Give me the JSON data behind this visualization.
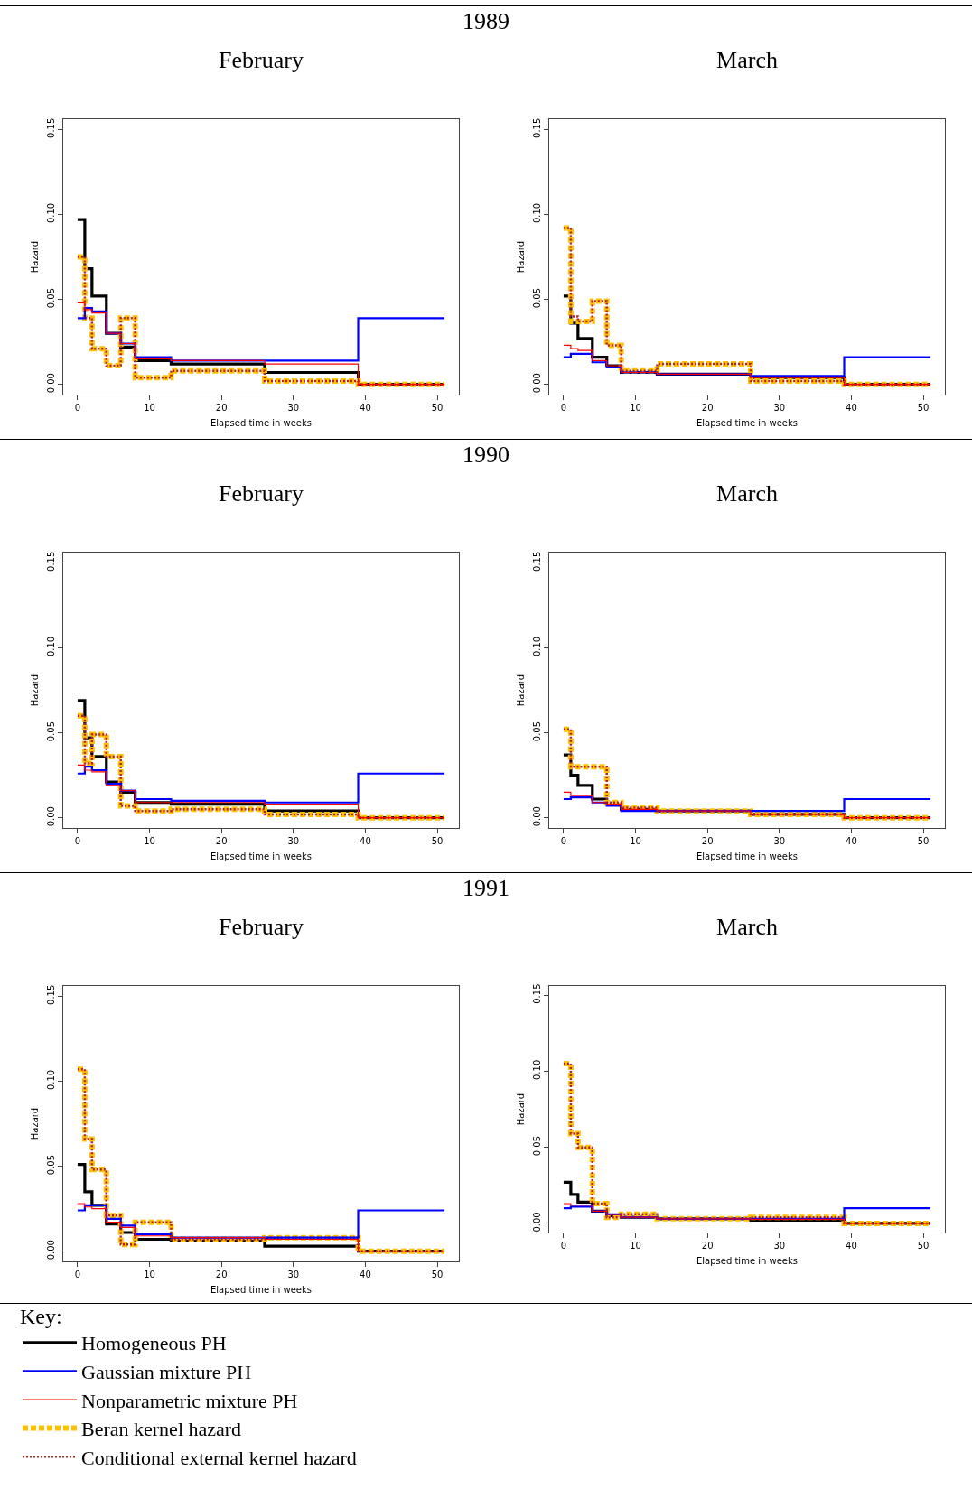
{
  "chart_data": [
    {
      "type": "step",
      "title": "February",
      "annotations": [
        "1989"
      ],
      "xlabel": "Elapsed time in weeks",
      "ylabel": "Hazard",
      "x": [
        0,
        1,
        2,
        4,
        6,
        8,
        13,
        26,
        39,
        51
      ],
      "xlim": [
        -2,
        53
      ],
      "xticks": [
        0,
        10,
        20,
        30,
        40,
        50
      ],
      "ylim": [
        -0.006,
        0.156
      ],
      "yticks": [
        {
          "value": 0,
          "label": "0.00"
        },
        {
          "value": 0.05,
          "label": "0.05"
        },
        {
          "value": 0.1,
          "label": "0.10"
        },
        {
          "value": 0.15,
          "label": "0.15"
        }
      ],
      "series": [
        {
          "color": "#000000",
          "line_style": "solid",
          "values": [
            0.097,
            0.068,
            0.052,
            0.03,
            0.022,
            0.014,
            0.012,
            0.007,
            0,
            0
          ]
        },
        {
          "color": "#0000ff",
          "line_style": "solid",
          "values": [
            0.039,
            0.045,
            0.043,
            0.03,
            0.024,
            0.016,
            0.014,
            0.014,
            0.039,
            0.039
          ]
        },
        {
          "color": "#ff0000",
          "line_style": "solid",
          "values": [
            0.048,
            0.044,
            0.042,
            0.03,
            0.024,
            0.015,
            0.014,
            0.012,
            0,
            0
          ]
        },
        {
          "color": "#ffc000",
          "line_style": "dotted",
          "values": [
            0.075,
            0.039,
            0.021,
            0.011,
            0.039,
            0.004,
            0.008,
            0.002,
            0,
            0
          ]
        },
        {
          "color": "#b22222",
          "line_style": "dotted",
          "values": [
            0.075,
            0.039,
            0.021,
            0.011,
            0.039,
            0.004,
            0.008,
            0.002,
            0,
            0
          ]
        }
      ]
    },
    {
      "type": "step",
      "title": "March",
      "xlabel": "Elapsed time in weeks",
      "ylabel": "Hazard",
      "x": [
        0,
        1,
        2,
        4,
        6,
        8,
        13,
        26,
        39,
        51
      ],
      "xlim": [
        -2,
        53
      ],
      "xticks": [
        0,
        10,
        20,
        30,
        40,
        50
      ],
      "ylim": [
        -0.006,
        0.156
      ],
      "yticks": [
        {
          "value": 0,
          "label": "0.00"
        },
        {
          "value": 0.05,
          "label": "0.05"
        },
        {
          "value": 0.1,
          "label": "0.10"
        },
        {
          "value": 0.15,
          "label": "0.15"
        }
      ],
      "series": [
        {
          "color": "#000000",
          "line_style": "solid",
          "values": [
            0.052,
            0.036,
            0.027,
            0.016,
            0.011,
            0.007,
            0.006,
            0.004,
            0,
            0
          ]
        },
        {
          "color": "#0000ff",
          "line_style": "solid",
          "values": [
            0.016,
            0.018,
            0.018,
            0.013,
            0.01,
            0.007,
            0.006,
            0.005,
            0.016,
            0.016
          ]
        },
        {
          "color": "#ff0000",
          "line_style": "solid",
          "values": [
            0.023,
            0.021,
            0.02,
            0.014,
            0.011,
            0.007,
            0.006,
            0.004,
            0,
            0
          ]
        },
        {
          "color": "#ffc000",
          "line_style": "dotted",
          "values": [
            0.092,
            0.037,
            0.037,
            0.049,
            0.023,
            0.008,
            0.012,
            0.002,
            0,
            0
          ]
        },
        {
          "color": "#b22222",
          "line_style": "dotted",
          "values": [
            0.092,
            0.04,
            0.037,
            0.049,
            0.023,
            0.008,
            0.012,
            0.002,
            0,
            0
          ]
        }
      ]
    },
    {
      "type": "step",
      "title": "February",
      "annotations": [
        "1990"
      ],
      "xlabel": "Elapsed time in weeks",
      "ylabel": "Hazard",
      "x": [
        0,
        1,
        2,
        4,
        6,
        8,
        13,
        26,
        39,
        51
      ],
      "xlim": [
        -2,
        53
      ],
      "xticks": [
        0,
        10,
        20,
        30,
        40,
        50
      ],
      "ylim": [
        -0.006,
        0.156
      ],
      "yticks": [
        {
          "value": 0,
          "label": "0.00"
        },
        {
          "value": 0.05,
          "label": "0.05"
        },
        {
          "value": 0.1,
          "label": "0.10"
        },
        {
          "value": 0.15,
          "label": "0.15"
        }
      ],
      "series": [
        {
          "color": "#000000",
          "line_style": "solid",
          "values": [
            0.069,
            0.047,
            0.036,
            0.021,
            0.015,
            0.009,
            0.008,
            0.004,
            0,
            0
          ]
        },
        {
          "color": "#0000ff",
          "line_style": "solid",
          "values": [
            0.026,
            0.03,
            0.028,
            0.02,
            0.016,
            0.011,
            0.01,
            0.009,
            0.026,
            0.026
          ]
        },
        {
          "color": "#ff0000",
          "line_style": "solid",
          "values": [
            0.031,
            0.028,
            0.027,
            0.019,
            0.016,
            0.009,
            0.009,
            0.008,
            0,
            0
          ]
        },
        {
          "color": "#ffc000",
          "line_style": "dotted",
          "values": [
            0.06,
            0.032,
            0.049,
            0.036,
            0.007,
            0.004,
            0.005,
            0.002,
            0,
            0
          ]
        },
        {
          "color": "#b22222",
          "line_style": "dotted",
          "values": [
            0.06,
            0.032,
            0.049,
            0.036,
            0.007,
            0.004,
            0.005,
            0.002,
            0,
            0
          ]
        }
      ]
    },
    {
      "type": "step",
      "title": "March",
      "xlabel": "Elapsed time in weeks",
      "ylabel": "Hazard",
      "x": [
        0,
        1,
        2,
        4,
        6,
        8,
        13,
        26,
        39,
        51
      ],
      "xlim": [
        -2,
        53
      ],
      "xticks": [
        0,
        10,
        20,
        30,
        40,
        50
      ],
      "ylim": [
        -0.006,
        0.156
      ],
      "yticks": [
        {
          "value": 0,
          "label": "0.00"
        },
        {
          "value": 0.05,
          "label": "0.05"
        },
        {
          "value": 0.1,
          "label": "0.10"
        },
        {
          "value": 0.15,
          "label": "0.15"
        }
      ],
      "series": [
        {
          "color": "#000000",
          "line_style": "solid",
          "values": [
            0.037,
            0.025,
            0.019,
            0.011,
            0.008,
            0.005,
            0.004,
            0.002,
            0,
            0
          ]
        },
        {
          "color": "#0000ff",
          "line_style": "solid",
          "values": [
            0.011,
            0.012,
            0.012,
            0.009,
            0.007,
            0.004,
            0.004,
            0.004,
            0.011,
            0.011
          ]
        },
        {
          "color": "#ff0000",
          "line_style": "solid",
          "values": [
            0.015,
            0.013,
            0.013,
            0.009,
            0.008,
            0.005,
            0.004,
            0.002,
            0,
            0
          ]
        },
        {
          "color": "#ffc000",
          "line_style": "dotted",
          "values": [
            0.052,
            0.03,
            0.03,
            0.03,
            0.009,
            0.006,
            0.004,
            0.002,
            0,
            0
          ]
        },
        {
          "color": "#b22222",
          "line_style": "dotted",
          "values": [
            0.052,
            0.03,
            0.03,
            0.03,
            0.009,
            0.006,
            0.004,
            0.002,
            0,
            0
          ]
        }
      ]
    },
    {
      "type": "step",
      "title": "February",
      "annotations": [
        "1991"
      ],
      "xlabel": "Elapsed time in weeks",
      "ylabel": "Hazard",
      "x": [
        0,
        1,
        2,
        4,
        6,
        8,
        13,
        26,
        39,
        51
      ],
      "xlim": [
        -2,
        53
      ],
      "xticks": [
        0,
        10,
        20,
        30,
        40,
        50
      ],
      "ylim": [
        -0.006,
        0.156
      ],
      "yticks": [
        {
          "value": 0,
          "label": "0.00"
        },
        {
          "value": 0.05,
          "label": "0.05"
        },
        {
          "value": 0.1,
          "label": "0.10"
        },
        {
          "value": 0.15,
          "label": "0.15"
        }
      ],
      "series": [
        {
          "color": "#000000",
          "line_style": "solid",
          "values": [
            0.051,
            0.035,
            0.027,
            0.016,
            0.011,
            0.007,
            0.006,
            0.003,
            0,
            0
          ]
        },
        {
          "color": "#0000ff",
          "line_style": "solid",
          "values": [
            0.024,
            0.027,
            0.027,
            0.019,
            0.015,
            0.01,
            0.008,
            0.008,
            0.024,
            0.024
          ]
        },
        {
          "color": "#ff0000",
          "line_style": "solid",
          "values": [
            0.028,
            0.026,
            0.025,
            0.017,
            0.014,
            0.009,
            0.008,
            0.007,
            0,
            0
          ]
        },
        {
          "color": "#ffc000",
          "line_style": "dotted",
          "values": [
            0.107,
            0.066,
            0.048,
            0.021,
            0.004,
            0.017,
            0.007,
            0.008,
            0,
            0
          ]
        },
        {
          "color": "#b22222",
          "line_style": "dotted",
          "values": [
            0.107,
            0.066,
            0.048,
            0.021,
            0.004,
            0.017,
            0.007,
            0.008,
            0,
            0
          ]
        }
      ]
    },
    {
      "type": "step",
      "title": "March",
      "xlabel": "Elapsed time in weeks",
      "ylabel": "Hazard",
      "legend": "bottom",
      "legend_title": "Key:",
      "x": [
        0,
        1,
        2,
        4,
        6,
        8,
        13,
        26,
        39,
        51
      ],
      "xlim": [
        -2,
        53
      ],
      "xticks": [
        0,
        10,
        20,
        30,
        40,
        50
      ],
      "ylim": [
        -0.006,
        0.156
      ],
      "yticks": [
        {
          "value": 0,
          "label": "0.00"
        },
        {
          "value": 0.05,
          "label": "0.05"
        },
        {
          "value": 0.1,
          "label": "0.10"
        },
        {
          "value": 0.15,
          "label": "0.15"
        }
      ],
      "series": [
        {
          "name": "Homogeneous PH",
          "color": "#000000",
          "line_style": "solid",
          "values": [
            0.027,
            0.019,
            0.014,
            0.008,
            0.005,
            0.004,
            0.003,
            0.002,
            0,
            0
          ]
        },
        {
          "name": "Gaussian mixture PH",
          "color": "#0000ff",
          "line_style": "solid",
          "values": [
            0.01,
            0.011,
            0.011,
            0.008,
            0.006,
            0.004,
            0.003,
            0.003,
            0.01,
            0.01
          ]
        },
        {
          "name": "Nonparametric mixture PH",
          "color": "#ff0000",
          "line_style": "solid",
          "values": [
            0.013,
            0.012,
            0.012,
            0.008,
            0.006,
            0.004,
            0.003,
            0.0027,
            0,
            0
          ]
        },
        {
          "name": "Beran kernel hazard",
          "color": "#ffc000",
          "line_style": "dotted",
          "values": [
            0.105,
            0.059,
            0.05,
            0.013,
            0.004,
            0.006,
            0.003,
            0.004,
            0,
            0
          ]
        },
        {
          "name": "Conditional external kernel hazard",
          "color": "#b22222",
          "line_style": "dotted",
          "values": [
            0.105,
            0.059,
            0.05,
            0.013,
            0.004,
            0.006,
            0.003,
            0.004,
            0,
            0
          ]
        }
      ]
    }
  ]
}
